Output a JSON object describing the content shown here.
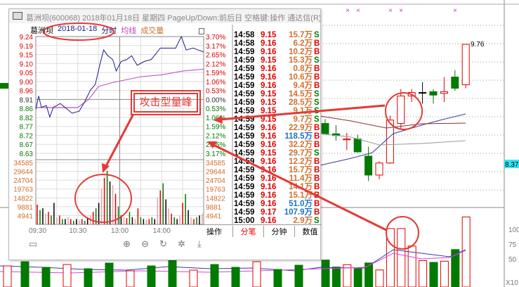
{
  "window": {
    "title": "葛洲坝(600068) 2018年01月18日 星期四 PageUp/Down:前后日 空格键:操作 通达信(R)",
    "stock": "葛洲坝",
    "date": "2018-01-18",
    "mode": "分时",
    "avg_label": "均线",
    "vol_label": "成交量"
  },
  "annotation": {
    "text": "攻击型量峰",
    "color": "#e53935"
  },
  "colors": {
    "up": "#e00000",
    "down": "#007a00",
    "price_line": "#1a1a8c",
    "avg_line": "#c040c0",
    "badge": "#33e6f0"
  },
  "price_axis": [
    "9.24",
    "9.19",
    "9.15",
    "9.10",
    "9.05",
    "9.00",
    "8.96",
    "8.91",
    "8.86",
    "8.82",
    "8.77",
    "8.72",
    "8.67",
    "8.63"
  ],
  "pct_axis": [
    "3.70%",
    "3.17%",
    "2.65%",
    "2.12%",
    "1.59%",
    "1.06%",
    "0.53%",
    "0.00%",
    "0.53%",
    "1.06%",
    "1.59%",
    "2.12%",
    "2.65%",
    "3.17%"
  ],
  "vol_axis": [
    "34585",
    "29644",
    "24704",
    "19763",
    "14822",
    "9881",
    "4941"
  ],
  "time_axis": [
    "09:30",
    "10:30",
    "13:00",
    "14:00"
  ],
  "trades": [
    {
      "t": "14:58",
      "p": "9.15",
      "v": "15.7万",
      "d": "S"
    },
    {
      "t": "14:58",
      "p": "9.16",
      "v": "6.2万",
      "d": "B"
    },
    {
      "t": "14:59",
      "p": "9.16",
      "v": "10.2万",
      "d": "B"
    },
    {
      "t": "14:59",
      "p": "9.15",
      "v": "15.3万",
      "d": "S"
    },
    {
      "t": "14:59",
      "p": "9.16",
      "v": "0.8万",
      "d": "B"
    },
    {
      "t": "14:59",
      "p": "9.16",
      "v": "10.6万",
      "d": "B"
    },
    {
      "t": "14:59",
      "p": "9.16",
      "v": "9.4万",
      "d": "B"
    },
    {
      "t": "14:59",
      "p": "9.15",
      "v": "14.5万",
      "d": "S"
    },
    {
      "t": "14:59",
      "p": "9.15",
      "v": "28.5万",
      "d": "S"
    },
    {
      "t": "14:59",
      "p": "9.15",
      "v": "9.1万",
      "d": "S"
    },
    {
      "t": "14:59",
      "p": "9.15",
      "v": "9.7万",
      "d": "S"
    },
    {
      "t": "14:59",
      "p": "9.16",
      "v": "22.9万",
      "d": "B"
    },
    {
      "t": "14:59",
      "p": "9.16",
      "v": "118.5万",
      "d": "B"
    },
    {
      "t": "14:59",
      "p": "9.16",
      "v": "32.2万",
      "d": "B"
    },
    {
      "t": "14:59",
      "p": "9.15",
      "v": "29.7万",
      "d": "S"
    },
    {
      "t": "14:59",
      "p": "9.16",
      "v": "12.2万",
      "d": "B"
    },
    {
      "t": "14:59",
      "p": "9.16",
      "v": "15.7万",
      "d": "B"
    },
    {
      "t": "14:59",
      "p": "9.16",
      "v": "11.4万",
      "d": "B"
    },
    {
      "t": "14:59",
      "p": "9.16",
      "v": "14.1万",
      "d": "B"
    },
    {
      "t": "14:59",
      "p": "9.16",
      "v": "15.1万",
      "d": "B"
    },
    {
      "t": "14:59",
      "p": "9.16",
      "v": "51.0万",
      "d": "B"
    },
    {
      "t": "14:59",
      "p": "9.17",
      "v": "107.9万",
      "d": "B"
    },
    {
      "t": "15:00",
      "p": "9.16",
      "v": "2.9万",
      "d": "S"
    }
  ],
  "tabs": [
    "操作",
    "分笔",
    "分钟",
    "数值"
  ],
  "toolbar": [
    "save-icon",
    "zoom-in-icon",
    "zoom-out-icon",
    "refresh-icon",
    "magic-icon",
    "download-icon"
  ],
  "chart_data": [
    {
      "type": "line",
      "name": "intraday",
      "ylim": [
        8.63,
        9.24
      ],
      "price": [
        [
          0,
          8.86
        ],
        [
          4,
          8.93
        ],
        [
          8,
          8.87
        ],
        [
          15,
          8.88
        ],
        [
          20,
          8.82
        ],
        [
          25,
          8.87
        ],
        [
          35,
          8.89
        ],
        [
          45,
          8.86
        ],
        [
          52,
          8.84
        ],
        [
          62,
          8.85
        ],
        [
          70,
          8.9
        ],
        [
          78,
          8.96
        ],
        [
          85,
          8.99
        ],
        [
          92,
          9.1
        ],
        [
          97,
          9.17
        ],
        [
          103,
          9.14
        ],
        [
          110,
          9.12
        ],
        [
          115,
          9.06
        ],
        [
          122,
          9.11
        ],
        [
          130,
          9.12
        ],
        [
          137,
          9.14
        ],
        [
          145,
          9.09
        ],
        [
          155,
          9.11
        ],
        [
          165,
          9.12
        ],
        [
          178,
          9.18
        ],
        [
          190,
          9.18
        ],
        [
          200,
          9.18
        ],
        [
          208,
          9.24
        ],
        [
          215,
          9.17
        ],
        [
          225,
          9.18
        ],
        [
          232,
          9.17
        ],
        [
          240,
          9.16
        ]
      ],
      "avg": [
        [
          0,
          8.87
        ],
        [
          60,
          8.87
        ],
        [
          75,
          8.91
        ],
        [
          90,
          8.98
        ],
        [
          110,
          9.0
        ],
        [
          150,
          9.03
        ],
        [
          180,
          9.04
        ],
        [
          210,
          9.06
        ],
        [
          240,
          9.07
        ]
      ],
      "volume": [
        11000,
        8000,
        9000,
        6000,
        7000,
        5000,
        12000,
        4000,
        5000,
        3000,
        3000,
        4000,
        3000,
        2000,
        3000,
        2500,
        3000,
        2000,
        4000,
        5000,
        7000,
        9000,
        12000,
        20000,
        26000,
        30000,
        24000,
        22000,
        17000,
        10000,
        5000,
        4000,
        3500,
        7000,
        4000,
        3000,
        9000,
        4000,
        3000,
        2500,
        3000,
        4000,
        3000,
        15000,
        19000,
        23000,
        14000,
        9000,
        6000,
        4000,
        3000,
        5000,
        12000,
        17000,
        8000,
        4000,
        3000,
        4000,
        5000,
        6000
      ]
    },
    {
      "type": "candlestick",
      "last_label": "9.76",
      "current_price": "8.37",
      "candles": [
        [
          8.84,
          8.72,
          8.89,
          8.71
        ],
        [
          8.72,
          8.7,
          8.82,
          8.64
        ],
        [
          8.65,
          8.66,
          8.73,
          8.53
        ],
        [
          8.66,
          8.51,
          8.71,
          8.5
        ],
        [
          8.46,
          8.24,
          8.57,
          8.17
        ],
        [
          8.24,
          8.38,
          8.4,
          8.19
        ],
        [
          8.38,
          8.88,
          8.93,
          8.37
        ],
        [
          8.84,
          9.16,
          9.24,
          8.78
        ],
        [
          9.16,
          9.2,
          9.24,
          9.09
        ],
        [
          9.2,
          9.2,
          9.32,
          9.07
        ],
        [
          9.21,
          9.17,
          9.24,
          9.07
        ],
        [
          9.19,
          9.21,
          9.38,
          9.09
        ],
        [
          9.38,
          9.25,
          9.46,
          9.22
        ],
        [
          9.29,
          9.76,
          9.76,
          9.25
        ]
      ],
      "volume": [
        48,
        36,
        40,
        33,
        43,
        31,
        102,
        102,
        72,
        47,
        44,
        46,
        66,
        122
      ],
      "vol_axis": [
        "100",
        "75",
        "50"
      ],
      "vol_unit": "X10"
    }
  ]
}
